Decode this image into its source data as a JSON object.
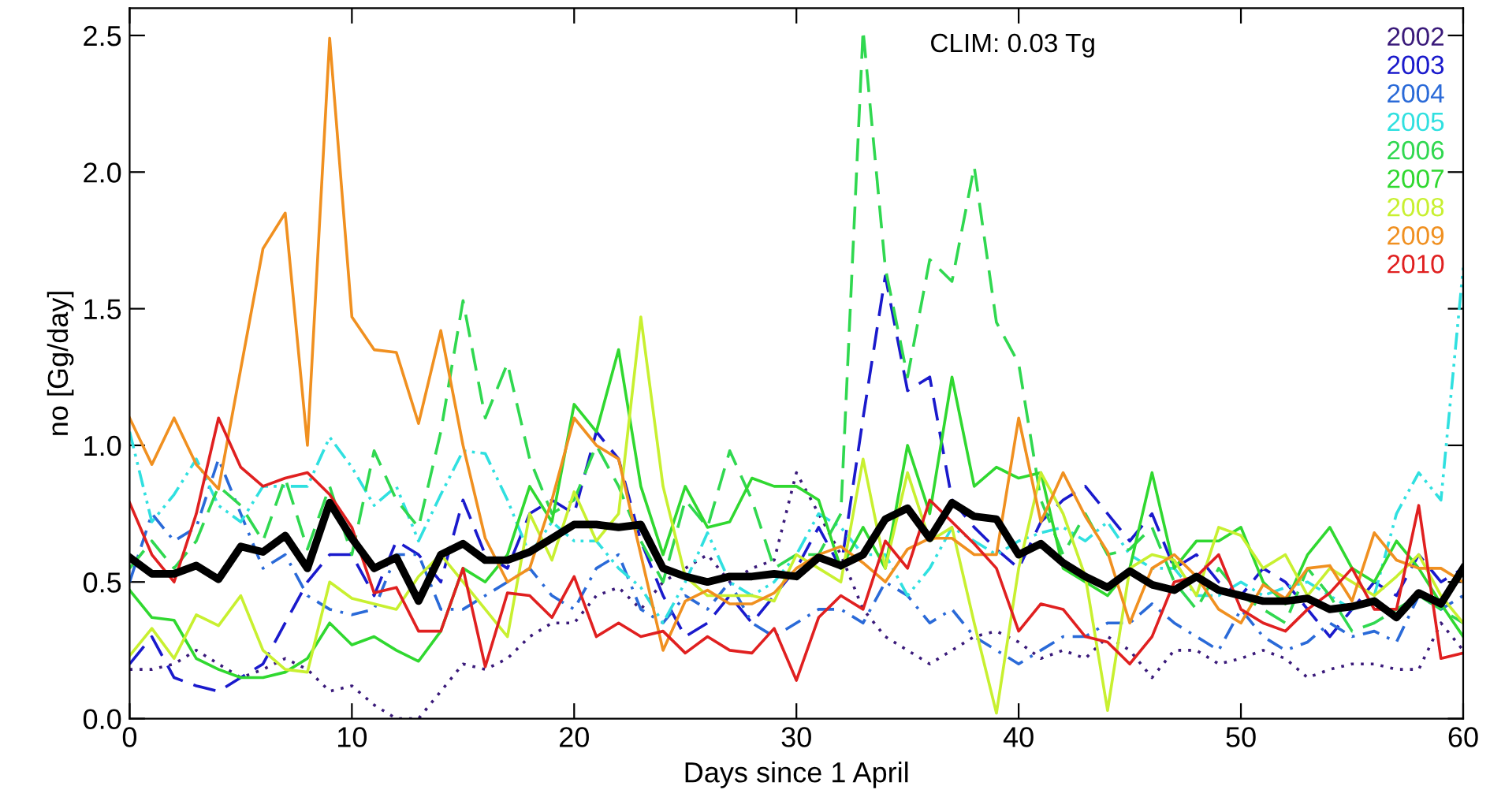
{
  "chart_data": {
    "type": "line",
    "xlabel": "Days since 1 April",
    "ylabel": "no [Gg/day]",
    "annotations": [
      "CLIM: 0.03 Tg"
    ],
    "x": [
      0,
      1,
      2,
      3,
      4,
      5,
      6,
      7,
      8,
      9,
      10,
      11,
      12,
      13,
      14,
      15,
      16,
      17,
      18,
      19,
      20,
      21,
      22,
      23,
      24,
      25,
      26,
      27,
      28,
      29,
      30,
      31,
      32,
      33,
      34,
      35,
      36,
      37,
      38,
      39,
      40,
      41,
      42,
      43,
      44,
      45,
      46,
      47,
      48,
      49,
      50,
      51,
      52,
      53,
      54,
      55,
      56,
      57,
      58,
      59,
      60
    ],
    "xlim": [
      0,
      60
    ],
    "xticks": [
      0,
      10,
      20,
      30,
      40,
      50,
      60
    ],
    "ylim": [
      0,
      2.6
    ],
    "yticks": [
      {
        "value": 0,
        "label": "0.0"
      },
      {
        "value": 0.5,
        "label": "0.5"
      },
      {
        "value": 1,
        "label": "1.0"
      },
      {
        "value": 1.5,
        "label": "1.5"
      },
      {
        "value": 2,
        "label": "2.0"
      },
      {
        "value": 2.5,
        "label": "2.5"
      }
    ],
    "grid": false,
    "legend": "top right",
    "marker": "none",
    "series": [
      {
        "name": "2002",
        "color": "#3a1a7a",
        "line_style": "dotted",
        "values": [
          0.18,
          0.18,
          0.2,
          0.25,
          0.2,
          0.15,
          0.18,
          0.22,
          0.18,
          0.1,
          0.12,
          0.05,
          0.0,
          0.0,
          0.1,
          0.2,
          0.18,
          0.22,
          0.3,
          0.35,
          0.35,
          0.45,
          0.48,
          0.4,
          0.5,
          0.55,
          0.6,
          0.5,
          0.55,
          0.58,
          0.9,
          0.75,
          0.6,
          0.4,
          0.3,
          0.25,
          0.2,
          0.25,
          0.3,
          0.32,
          0.28,
          0.22,
          0.25,
          0.22,
          0.3,
          0.25,
          0.15,
          0.25,
          0.25,
          0.2,
          0.22,
          0.25,
          0.22,
          0.15,
          0.18,
          0.2,
          0.2,
          0.18,
          0.18,
          0.35,
          0.25
        ]
      },
      {
        "name": "2003",
        "color": "#1a1acc",
        "line_style": "dashed",
        "values": [
          0.2,
          0.3,
          0.15,
          0.12,
          0.1,
          0.15,
          0.2,
          0.35,
          0.5,
          0.6,
          0.6,
          0.45,
          0.65,
          0.6,
          0.5,
          0.8,
          0.6,
          0.55,
          0.75,
          0.8,
          0.75,
          1.05,
          0.95,
          0.65,
          0.45,
          0.3,
          0.35,
          0.45,
          0.35,
          0.45,
          0.55,
          0.7,
          0.55,
          1.1,
          1.62,
          1.2,
          1.25,
          0.8,
          0.7,
          0.62,
          0.55,
          0.72,
          0.8,
          0.85,
          0.75,
          0.65,
          0.75,
          0.55,
          0.6,
          0.5,
          0.45,
          0.55,
          0.5,
          0.4,
          0.3,
          0.4,
          0.5,
          0.45,
          0.6,
          0.5,
          0.55
        ]
      },
      {
        "name": "2004",
        "color": "#2a6ad8",
        "line_style": "dashdot",
        "values": [
          0.5,
          0.75,
          0.65,
          0.7,
          0.95,
          0.75,
          0.55,
          0.6,
          0.45,
          0.4,
          0.38,
          0.4,
          0.6,
          0.6,
          0.4,
          0.4,
          0.45,
          0.5,
          0.55,
          0.45,
          0.4,
          0.55,
          0.6,
          0.4,
          0.35,
          0.45,
          0.4,
          0.5,
          0.35,
          0.3,
          0.35,
          0.4,
          0.4,
          0.35,
          0.5,
          0.45,
          0.35,
          0.4,
          0.3,
          0.25,
          0.2,
          0.25,
          0.3,
          0.3,
          0.35,
          0.35,
          0.42,
          0.35,
          0.3,
          0.25,
          0.4,
          0.3,
          0.25,
          0.28,
          0.35,
          0.3,
          0.32,
          0.28,
          0.45,
          0.4,
          0.45
        ]
      },
      {
        "name": "2005",
        "color": "#30e0e0",
        "line_style": "dashdotdot",
        "values": [
          1.05,
          0.72,
          0.82,
          0.95,
          0.78,
          0.72,
          0.85,
          0.85,
          0.85,
          1.03,
          0.92,
          0.78,
          0.85,
          0.65,
          0.82,
          0.98,
          0.97,
          0.8,
          0.6,
          0.72,
          0.65,
          0.65,
          0.55,
          0.48,
          0.35,
          0.5,
          0.68,
          0.5,
          0.45,
          0.5,
          0.6,
          0.75,
          0.7,
          0.6,
          0.6,
          0.45,
          0.55,
          0.7,
          0.65,
          0.6,
          0.65,
          0.68,
          0.7,
          0.65,
          0.72,
          0.6,
          0.55,
          0.55,
          0.45,
          0.45,
          0.5,
          0.45,
          0.48,
          0.5,
          0.45,
          0.4,
          0.45,
          0.75,
          0.9,
          0.8,
          1.65
        ]
      },
      {
        "name": "2006",
        "color": "#30d850",
        "line_style": "dashed",
        "values": [
          0.55,
          0.65,
          0.55,
          0.65,
          0.85,
          0.78,
          0.65,
          0.88,
          0.62,
          0.85,
          0.6,
          0.98,
          0.8,
          0.7,
          1.05,
          1.53,
          1.1,
          1.3,
          0.95,
          0.75,
          0.8,
          1.0,
          0.85,
          0.65,
          0.5,
          0.8,
          0.7,
          0.98,
          0.8,
          0.55,
          0.6,
          0.6,
          0.75,
          2.52,
          1.65,
          1.25,
          1.68,
          1.6,
          2.02,
          1.45,
          1.3,
          0.8,
          0.6,
          0.75,
          0.6,
          0.62,
          0.7,
          0.5,
          0.4,
          0.55,
          0.45,
          0.4,
          0.35,
          0.55,
          0.45,
          0.32,
          0.35,
          0.4,
          0.45,
          0.4,
          0.35
        ]
      },
      {
        "name": "2007",
        "color": "#30d830",
        "line_style": "solid",
        "values": [
          0.47,
          0.37,
          0.36,
          0.22,
          0.18,
          0.15,
          0.15,
          0.17,
          0.22,
          0.35,
          0.27,
          0.3,
          0.25,
          0.21,
          0.32,
          0.55,
          0.5,
          0.6,
          0.85,
          0.72,
          1.15,
          1.05,
          1.35,
          0.85,
          0.6,
          0.85,
          0.7,
          0.72,
          0.88,
          0.85,
          0.85,
          0.8,
          0.55,
          0.7,
          0.55,
          1.0,
          0.75,
          1.25,
          0.85,
          0.92,
          0.88,
          0.9,
          0.55,
          0.5,
          0.45,
          0.55,
          0.9,
          0.55,
          0.65,
          0.65,
          0.7,
          0.5,
          0.42,
          0.6,
          0.7,
          0.55,
          0.5,
          0.65,
          0.55,
          0.42,
          0.3
        ]
      },
      {
        "name": "2008",
        "color": "#c8f030",
        "line_style": "solid",
        "values": [
          0.23,
          0.33,
          0.22,
          0.38,
          0.34,
          0.45,
          0.25,
          0.18,
          0.17,
          0.5,
          0.44,
          0.42,
          0.4,
          0.52,
          0.6,
          0.5,
          0.4,
          0.3,
          0.75,
          0.58,
          0.83,
          0.65,
          0.75,
          1.47,
          0.85,
          0.52,
          0.45,
          0.45,
          0.45,
          0.43,
          0.6,
          0.55,
          0.5,
          0.95,
          0.55,
          0.9,
          0.65,
          0.7,
          0.35,
          0.02,
          0.55,
          0.9,
          0.75,
          0.52,
          0.03,
          0.55,
          0.6,
          0.58,
          0.45,
          0.7,
          0.67,
          0.55,
          0.6,
          0.45,
          0.55,
          0.5,
          0.45,
          0.52,
          0.6,
          0.45,
          0.35
        ]
      },
      {
        "name": "2009",
        "color": "#f09020",
        "line_style": "solid",
        "values": [
          1.1,
          0.93,
          1.1,
          0.93,
          0.84,
          1.28,
          1.72,
          1.85,
          1.0,
          2.49,
          1.47,
          1.35,
          1.34,
          1.08,
          1.42,
          1.0,
          0.66,
          0.5,
          0.55,
          0.8,
          1.1,
          1.0,
          0.95,
          0.6,
          0.25,
          0.43,
          0.47,
          0.42,
          0.42,
          0.46,
          0.55,
          0.6,
          0.63,
          0.57,
          0.5,
          0.62,
          0.66,
          0.66,
          0.6,
          0.6,
          1.1,
          0.72,
          0.9,
          0.74,
          0.61,
          0.35,
          0.55,
          0.6,
          0.52,
          0.4,
          0.35,
          0.49,
          0.44,
          0.55,
          0.56,
          0.43,
          0.68,
          0.58,
          0.55,
          0.55,
          0.5
        ]
      },
      {
        "name": "2010",
        "color": "#e02020",
        "line_style": "solid",
        "values": [
          0.79,
          0.6,
          0.5,
          0.75,
          1.1,
          0.92,
          0.85,
          0.88,
          0.9,
          0.82,
          0.7,
          0.46,
          0.48,
          0.32,
          0.32,
          0.55,
          0.19,
          0.46,
          0.45,
          0.37,
          0.52,
          0.3,
          0.35,
          0.3,
          0.32,
          0.24,
          0.3,
          0.25,
          0.24,
          0.33,
          0.14,
          0.37,
          0.45,
          0.4,
          0.65,
          0.55,
          0.8,
          0.72,
          0.64,
          0.55,
          0.32,
          0.42,
          0.4,
          0.3,
          0.28,
          0.2,
          0.3,
          0.5,
          0.52,
          0.6,
          0.4,
          0.35,
          0.32,
          0.4,
          0.46,
          0.55,
          0.4,
          0.4,
          0.78,
          0.22,
          0.24
        ]
      },
      {
        "color": "#000000",
        "line_style": "solid",
        "values": [
          0.59,
          0.53,
          0.53,
          0.56,
          0.51,
          0.63,
          0.61,
          0.67,
          0.55,
          0.79,
          0.66,
          0.55,
          0.59,
          0.43,
          0.6,
          0.64,
          0.58,
          0.58,
          0.61,
          0.66,
          0.71,
          0.71,
          0.7,
          0.71,
          0.55,
          0.52,
          0.5,
          0.52,
          0.52,
          0.53,
          0.52,
          0.59,
          0.56,
          0.6,
          0.73,
          0.77,
          0.66,
          0.79,
          0.74,
          0.73,
          0.6,
          0.64,
          0.57,
          0.52,
          0.48,
          0.54,
          0.49,
          0.47,
          0.52,
          0.47,
          0.45,
          0.43,
          0.43,
          0.44,
          0.4,
          0.41,
          0.43,
          0.37,
          0.46,
          0.42,
          0.55
        ]
      }
    ]
  }
}
